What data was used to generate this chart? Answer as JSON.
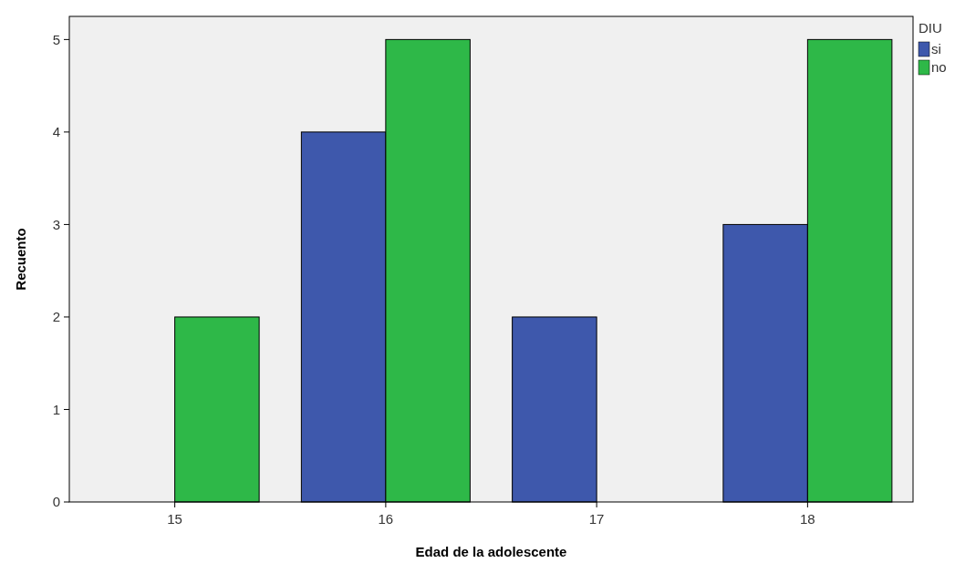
{
  "chart_data": {
    "type": "bar",
    "xlabel": "Edad de la adolescente",
    "ylabel": "Recuento",
    "legend_title": "DIU",
    "categories": [
      "15",
      "16",
      "17",
      "18"
    ],
    "series": [
      {
        "name": "si",
        "color": "#3e58ac",
        "values": [
          0,
          4,
          2,
          3
        ]
      },
      {
        "name": "no",
        "color": "#2eb848",
        "values": [
          2,
          5,
          0,
          5
        ]
      }
    ],
    "ylim": [
      0,
      5.25
    ],
    "yticks": [
      0,
      1,
      2,
      3,
      4,
      5
    ],
    "grid": false,
    "legend": "top right"
  }
}
